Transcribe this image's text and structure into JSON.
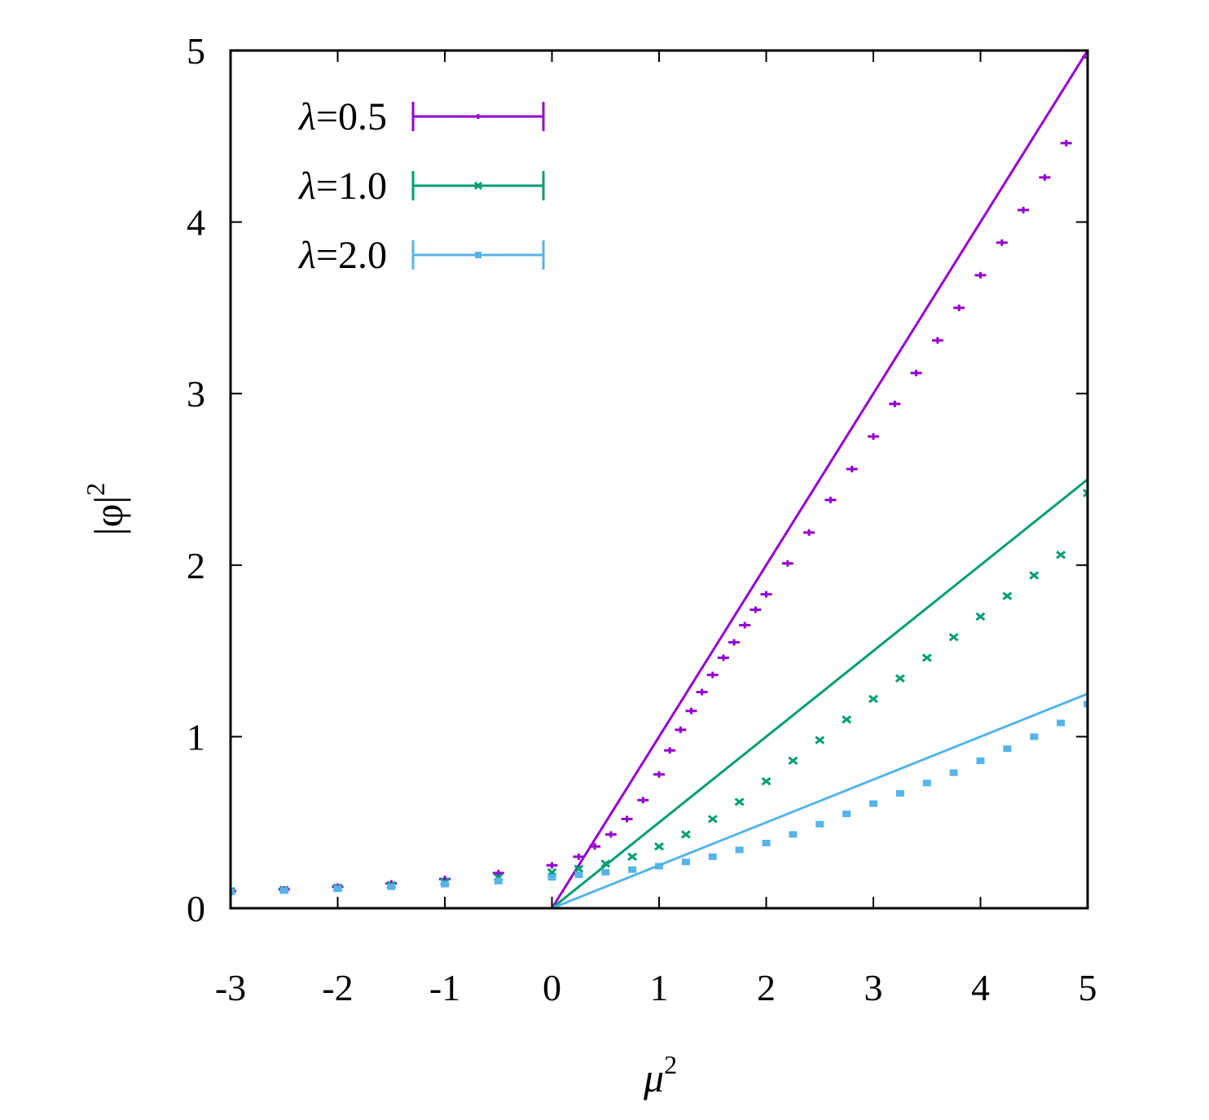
{
  "chart_data": {
    "type": "line",
    "xlabel": "μ",
    "xlabel_sup": "2",
    "ylabel": "|φ|",
    "ylabel_sup": "2",
    "xlim": [
      -3,
      5
    ],
    "ylim": [
      0,
      5
    ],
    "xticks": [
      -3,
      -2,
      -1,
      0,
      1,
      2,
      3,
      4,
      5
    ],
    "yticks": [
      0,
      1,
      2,
      3,
      4,
      5
    ],
    "xtick_labels": [
      "-3",
      "-2",
      "-1",
      "0",
      "1",
      "2",
      "3",
      "4",
      "5"
    ],
    "ytick_labels": [
      "0",
      "1",
      "2",
      "3",
      "4",
      "5"
    ],
    "grid": false,
    "legend_position": "top-left",
    "series": [
      {
        "name": "λ=0.5",
        "name_symbol": "λ",
        "name_rest": "=0.5",
        "color": "#9400d3",
        "marker": "plus",
        "theory_slope": 1.0,
        "points": [
          [
            -3.0,
            0.1
          ],
          [
            -2.5,
            0.11
          ],
          [
            -2.0,
            0.125
          ],
          [
            -1.5,
            0.145
          ],
          [
            -1.0,
            0.17
          ],
          [
            -0.5,
            0.205
          ],
          [
            0.0,
            0.25
          ],
          [
            0.25,
            0.3
          ],
          [
            0.4,
            0.36
          ],
          [
            0.55,
            0.43
          ],
          [
            0.7,
            0.52
          ],
          [
            0.85,
            0.63
          ],
          [
            1.0,
            0.78
          ],
          [
            1.1,
            0.92
          ],
          [
            1.2,
            1.04
          ],
          [
            1.3,
            1.15
          ],
          [
            1.4,
            1.26
          ],
          [
            1.5,
            1.36
          ],
          [
            1.6,
            1.46
          ],
          [
            1.7,
            1.55
          ],
          [
            1.8,
            1.65
          ],
          [
            1.9,
            1.74
          ],
          [
            2.0,
            1.83
          ],
          [
            2.2,
            2.01
          ],
          [
            2.4,
            2.19
          ],
          [
            2.6,
            2.38
          ],
          [
            2.8,
            2.56
          ],
          [
            3.0,
            2.75
          ],
          [
            3.2,
            2.94
          ],
          [
            3.4,
            3.12
          ],
          [
            3.6,
            3.31
          ],
          [
            3.8,
            3.5
          ],
          [
            4.0,
            3.69
          ],
          [
            4.2,
            3.88
          ],
          [
            4.4,
            4.07
          ],
          [
            4.6,
            4.26
          ],
          [
            4.8,
            4.46
          ],
          [
            5.0,
            4.96
          ]
        ]
      },
      {
        "name": "λ=1.0",
        "name_symbol": "λ",
        "name_rest": "=1.0",
        "color": "#009e73",
        "marker": "cross",
        "theory_slope": 0.5,
        "points": [
          [
            -3.0,
            0.1
          ],
          [
            -2.5,
            0.108
          ],
          [
            -2.0,
            0.12
          ],
          [
            -1.5,
            0.135
          ],
          [
            -1.0,
            0.155
          ],
          [
            -0.5,
            0.18
          ],
          [
            0.0,
            0.21
          ],
          [
            0.25,
            0.23
          ],
          [
            0.5,
            0.26
          ],
          [
            0.75,
            0.3
          ],
          [
            1.0,
            0.36
          ],
          [
            1.25,
            0.43
          ],
          [
            1.5,
            0.52
          ],
          [
            1.75,
            0.62
          ],
          [
            2.0,
            0.74
          ],
          [
            2.25,
            0.86
          ],
          [
            2.5,
            0.98
          ],
          [
            2.75,
            1.1
          ],
          [
            3.0,
            1.22
          ],
          [
            3.25,
            1.34
          ],
          [
            3.5,
            1.46
          ],
          [
            3.75,
            1.58
          ],
          [
            4.0,
            1.7
          ],
          [
            4.25,
            1.82
          ],
          [
            4.5,
            1.94
          ],
          [
            4.75,
            2.06
          ],
          [
            5.0,
            2.42
          ]
        ]
      },
      {
        "name": "λ=2.0",
        "name_symbol": "λ",
        "name_rest": "=2.0",
        "color": "#56b4e9",
        "marker": "square",
        "theory_slope": 0.25,
        "points": [
          [
            -3.0,
            0.095
          ],
          [
            -2.5,
            0.103
          ],
          [
            -2.0,
            0.113
          ],
          [
            -1.5,
            0.125
          ],
          [
            -1.0,
            0.14
          ],
          [
            -0.5,
            0.158
          ],
          [
            0.0,
            0.18
          ],
          [
            0.25,
            0.195
          ],
          [
            0.5,
            0.21
          ],
          [
            0.75,
            0.225
          ],
          [
            1.0,
            0.245
          ],
          [
            1.25,
            0.27
          ],
          [
            1.5,
            0.3
          ],
          [
            1.75,
            0.34
          ],
          [
            2.0,
            0.38
          ],
          [
            2.25,
            0.43
          ],
          [
            2.5,
            0.49
          ],
          [
            2.75,
            0.55
          ],
          [
            3.0,
            0.61
          ],
          [
            3.25,
            0.67
          ],
          [
            3.5,
            0.73
          ],
          [
            3.75,
            0.79
          ],
          [
            4.0,
            0.86
          ],
          [
            4.25,
            0.93
          ],
          [
            4.5,
            1.0
          ],
          [
            4.75,
            1.08
          ],
          [
            5.0,
            1.19
          ]
        ]
      }
    ]
  }
}
